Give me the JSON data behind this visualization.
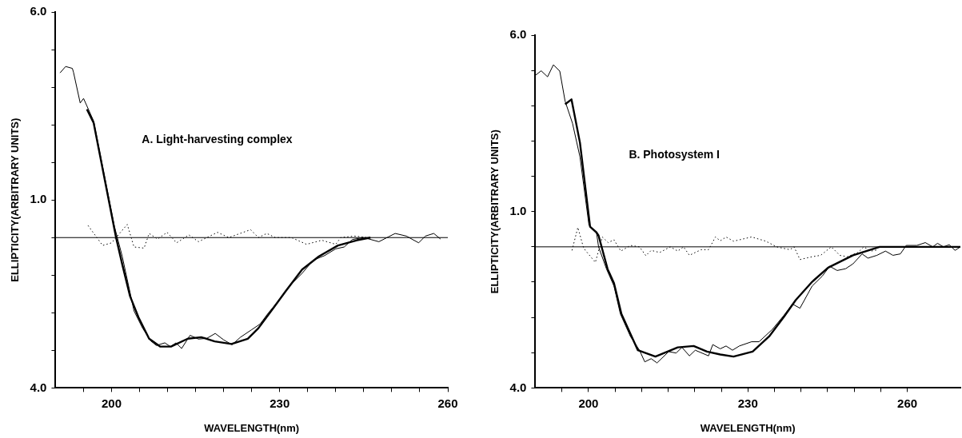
{
  "chart_data": [
    {
      "type": "line",
      "xlabel": "WAVELENGTH(nm)",
      "ylabel": "ELLIPTICITY(ARBITRARY UNITS)",
      "annotations": [
        "A. Light-harvesting complex"
      ],
      "xlim": [
        190,
        260
      ],
      "ylim": [
        -4,
        6
      ],
      "xticks": [
        {
          "value": 195,
          "label": null
        },
        200,
        {
          "value": 205,
          "label": null
        },
        {
          "value": 210,
          "label": null
        },
        {
          "value": 215,
          "label": null
        },
        {
          "value": 220,
          "label": null
        },
        {
          "value": 225,
          "label": null
        },
        230,
        {
          "value": 235,
          "label": null
        },
        {
          "value": 240,
          "label": null
        },
        {
          "value": 245,
          "label": null
        },
        {
          "value": 250,
          "label": null
        },
        {
          "value": 255,
          "label": null
        },
        260
      ],
      "yticks": [
        {
          "value": -4,
          "label": "4.0"
        },
        {
          "value": -3,
          "label": null
        },
        {
          "value": -2,
          "label": null
        },
        {
          "value": -1,
          "label": null
        },
        {
          "value": 0,
          "label": null
        },
        {
          "value": 1,
          "label": "1.0"
        },
        {
          "value": 2,
          "label": null
        },
        {
          "value": 3,
          "label": null
        },
        {
          "value": 4,
          "label": null
        },
        {
          "value": 5,
          "label": null
        },
        {
          "value": 6,
          "label": "6.0"
        }
      ],
      "grid": false,
      "legend": false,
      "marker": "none",
      "ref_lines": [
        {
          "axis": "y",
          "value": 0,
          "color": "#000000"
        }
      ],
      "series": [
        {
          "color": "#000000",
          "line_style": "solid",
          "x": [
            195.6,
            196.8,
            200.8,
            201.9,
            203.3,
            204.8,
            206.7,
            208.7,
            210.6,
            213.6,
            216,
            218.4,
            221.4,
            224.3,
            226.2,
            228.7,
            231.1,
            234,
            237,
            240.4,
            243.8,
            246.2
          ],
          "values": [
            3.41,
            3.05,
            0,
            -0.71,
            -1.56,
            -2.12,
            -2.69,
            -2.9,
            -2.9,
            -2.69,
            -2.65,
            -2.76,
            -2.83,
            -2.69,
            -2.41,
            -1.91,
            -1.42,
            -0.85,
            -0.5,
            -0.21,
            -0.07,
            0
          ]
        },
        {
          "color": "#000000",
          "line_style": "solid",
          "x": [
            190.8,
            191.8,
            193,
            193.2,
            194.4,
            195,
            196.8,
            200.5,
            201.9,
            204,
            205.5,
            207,
            208,
            209.5,
            210.5,
            211.5,
            212.5,
            214,
            215.5,
            217,
            218.5,
            220,
            221.5,
            223,
            225,
            226.5,
            228,
            230,
            232,
            234,
            236,
            238,
            240,
            241.5,
            243,
            245,
            247.7,
            250.6,
            252.6,
            254.8,
            256,
            257.5,
            258.7
          ],
          "values": [
            4.38,
            4.55,
            4.5,
            4.4,
            3.58,
            3.7,
            3.1,
            0.3,
            -0.5,
            -1.95,
            -2.4,
            -2.75,
            -2.87,
            -2.8,
            -2.9,
            -2.8,
            -2.95,
            -2.6,
            -2.7,
            -2.68,
            -2.55,
            -2.72,
            -2.85,
            -2.65,
            -2.45,
            -2.3,
            -2,
            -1.65,
            -1.25,
            -0.95,
            -0.6,
            -0.48,
            -0.3,
            -0.25,
            -0.05,
            0,
            -0.11,
            0.11,
            0.04,
            -0.14,
            0.04,
            0.11,
            -0.04
          ]
        },
        {
          "color": "#000000",
          "line_style": "dotted",
          "x": [
            195.8,
            198.4,
            200,
            202.8,
            204,
            205.8,
            206.7,
            208.2,
            209.9,
            211.6,
            213.8,
            215.5,
            218.9,
            220.9,
            224.8,
            226.2,
            227.7,
            229.2,
            232.1,
            234.8,
            237.5,
            240,
            240.9,
            243.3,
            245.8
          ],
          "values": [
            0.32,
            -0.21,
            -0.14,
            0.35,
            -0.25,
            -0.28,
            0.11,
            -0.04,
            0.14,
            -0.14,
            0.07,
            -0.11,
            0.14,
            0,
            0.21,
            0,
            0.11,
            0,
            0,
            -0.18,
            -0.07,
            -0.18,
            0,
            0.04,
            0
          ]
        }
      ]
    },
    {
      "type": "line",
      "xlabel": "WAVELENGTH(nm)",
      "ylabel": "ELLIPTICITY(ARBITRARY UNITS)",
      "annotations": [
        "B. Photosystem I"
      ],
      "xlim": [
        190,
        270
      ],
      "ylim": [
        -4,
        6
      ],
      "xticks": [
        {
          "value": 195,
          "label": null
        },
        200,
        {
          "value": 205,
          "label": null
        },
        {
          "value": 210,
          "label": null
        },
        {
          "value": 215,
          "label": null
        },
        {
          "value": 220,
          "label": null
        },
        {
          "value": 225,
          "label": null
        },
        230,
        {
          "value": 235,
          "label": null
        },
        {
          "value": 240,
          "label": null
        },
        {
          "value": 245,
          "label": null
        },
        {
          "value": 250,
          "label": null
        },
        {
          "value": 255,
          "label": null
        },
        260
      ],
      "yticks": [
        {
          "value": -4,
          "label": "4.0"
        },
        {
          "value": -3,
          "label": null
        },
        {
          "value": -2,
          "label": null
        },
        {
          "value": -1,
          "label": null
        },
        {
          "value": 0,
          "label": null
        },
        {
          "value": 1,
          "label": "1.0"
        },
        {
          "value": 2,
          "label": null
        },
        {
          "value": 3,
          "label": null
        },
        {
          "value": 4,
          "label": null
        },
        {
          "value": 5,
          "label": null
        },
        {
          "value": 6,
          "label": "6.0"
        }
      ],
      "grid": false,
      "legend": false,
      "marker": "none",
      "ref_lines": [
        {
          "axis": "y",
          "value": 0,
          "color": "#000000"
        }
      ],
      "series": [
        {
          "color": "#000000",
          "line_style": "solid",
          "x": [
            195.6,
            196.8,
            198.4,
            200.3,
            201.5,
            201.9,
            203.6,
            204.8,
            206.2,
            209.3,
            212.6,
            216.8,
            219.8,
            222.3,
            224.8,
            227.3,
            230.9,
            234,
            236.8,
            239,
            242.1,
            245.1,
            249.8,
            254.8,
            260.1,
            270
          ],
          "values": [
            4.04,
            4.18,
            2.95,
            0.57,
            0.41,
            0.32,
            -0.63,
            -1.03,
            -1.9,
            -2.93,
            -3.11,
            -2.85,
            -2.81,
            -2.97,
            -3.05,
            -3.11,
            -2.97,
            -2.54,
            -1.98,
            -1.51,
            -0.99,
            -0.59,
            -0.24,
            0,
            0,
            0
          ]
        },
        {
          "color": "#000000",
          "line_style": "solid",
          "x": [
            190,
            191.1,
            192.3,
            193.4,
            194.6,
            195.6,
            197,
            198.4,
            200.1,
            201.5,
            201.9,
            203.4,
            204.8,
            206,
            207.9,
            209.6,
            210.6,
            211.8,
            212.9,
            215.1,
            216.5,
            217.6,
            219,
            220.1,
            222.6,
            223.4,
            224.8,
            225.9,
            227.1,
            228.4,
            230.7,
            232.1,
            234.6,
            236.8,
            238.4,
            239.8,
            242.1,
            244,
            245.4,
            246.8,
            248.4,
            249.8,
            251.5,
            252.6,
            254.3,
            255.9,
            257.3,
            258.7,
            259.8,
            261.8,
            263.4,
            264.8,
            265.7,
            266.8,
            267.9,
            269,
            270
          ],
          "values": [
            4.86,
            4.99,
            4.82,
            5.16,
            4.98,
            4.13,
            3.5,
            2.55,
            0.61,
            0.41,
            0,
            -0.63,
            -1.11,
            -1.9,
            -2.54,
            -2.93,
            -3.26,
            -3.17,
            -3.29,
            -2.97,
            -3.01,
            -2.85,
            -3.09,
            -2.93,
            -3.09,
            -2.77,
            -2.89,
            -2.81,
            -2.93,
            -2.81,
            -2.69,
            -2.69,
            -2.34,
            -1.94,
            -1.62,
            -1.74,
            -1.11,
            -0.83,
            -0.55,
            -0.67,
            -0.62,
            -0.48,
            -0.2,
            -0.32,
            -0.24,
            -0.12,
            -0.24,
            -0.2,
            0.04,
            0.04,
            0.12,
            0,
            0.1,
            0,
            0.06,
            -0.1,
            0
          ]
        },
        {
          "color": "#000000",
          "line_style": "dotted",
          "x": [
            196.9,
            198,
            199.1,
            201.3,
            202.6,
            203.7,
            204.8,
            206.1,
            207.9,
            209.6,
            210.8,
            211.8,
            213.4,
            215.4,
            216.8,
            217.9,
            219,
            221.2,
            222.6,
            223.9,
            224.8,
            225.9,
            227.3,
            230.7,
            233.4,
            235.4,
            237.9,
            238.7,
            239.8,
            242.1,
            243.7,
            245.7,
            247.3,
            248.7,
            250.7,
            251.8,
            253.2,
            254.6
          ],
          "values": [
            -0.1,
            0.55,
            -0.04,
            -0.44,
            0.28,
            0.12,
            0.2,
            -0.12,
            0.04,
            0,
            -0.25,
            -0.1,
            -0.16,
            0,
            -0.12,
            0,
            -0.24,
            -0.08,
            -0.08,
            0.28,
            0.17,
            0.28,
            0.16,
            0.28,
            0.16,
            0,
            -0.08,
            0,
            -0.36,
            -0.28,
            -0.24,
            0,
            -0.24,
            -0.28,
            -0.16,
            0,
            -0.12,
            -0.08
          ]
        }
      ]
    }
  ]
}
